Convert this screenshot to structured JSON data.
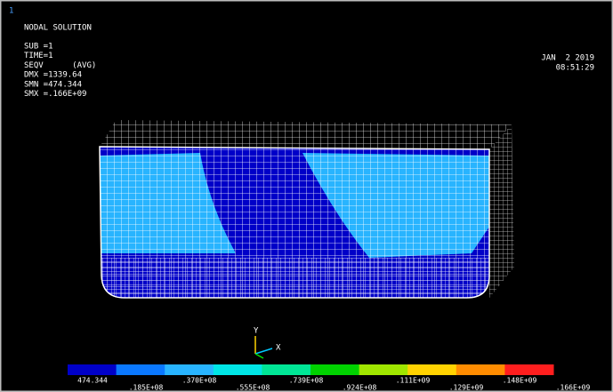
{
  "window_number": "1",
  "title": "NODAL SOLUTION",
  "info": [
    "SUB =1",
    "TIME=1",
    "SEQV      (AVG)",
    "DMX =1339.64",
    "SMN =474.344",
    "SMX =.166E+09"
  ],
  "date": "JAN  2 2019",
  "time": "08:51:29",
  "triad": {
    "y": "Y",
    "x": "X"
  },
  "legend": {
    "labels": [
      "474.344",
      ".185E+08",
      ".370E+08",
      ".555E+08",
      ".739E+08",
      ".924E+08",
      ".111E+09",
      ".129E+09",
      ".148E+09",
      ".166E+09"
    ],
    "colors": [
      "#0000c8",
      "#0a78ff",
      "#28b4ff",
      "#00e6e6",
      "#00e696",
      "#00d200",
      "#a0e600",
      "#ffd200",
      "#ff8c00",
      "#ff1e1e"
    ]
  }
}
